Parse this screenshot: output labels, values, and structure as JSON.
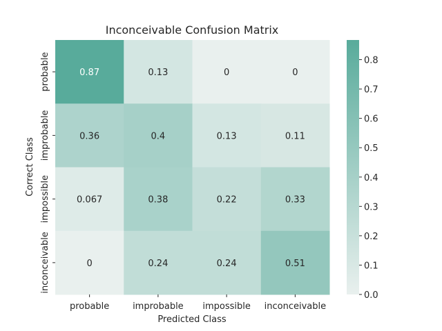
{
  "chart_data": {
    "type": "heatmap",
    "title": "Inconceivable Confusion Matrix",
    "xlabel": "Predicted Class",
    "ylabel": "Correct Class",
    "x_categories": [
      "probable",
      "improbable",
      "impossible",
      "inconceivable"
    ],
    "y_categories": [
      "probable",
      "improbable",
      "impossible",
      "inconceivable"
    ],
    "values": [
      [
        0.87,
        0.13,
        0,
        0
      ],
      [
        0.36,
        0.4,
        0.13,
        0.11
      ],
      [
        0.067,
        0.38,
        0.22,
        0.33
      ],
      [
        0,
        0.24,
        0.24,
        0.51
      ]
    ],
    "value_labels": [
      [
        "0.87",
        "0.13",
        "0",
        "0"
      ],
      [
        "0.36",
        "0.4",
        "0.13",
        "0.11"
      ],
      [
        "0.067",
        "0.38",
        "0.22",
        "0.33"
      ],
      [
        "0",
        "0.24",
        "0.24",
        "0.51"
      ]
    ],
    "colorbar": {
      "range": [
        0,
        0.867
      ],
      "ticks": [
        "0.0",
        "0.1",
        "0.2",
        "0.3",
        "0.4",
        "0.5",
        "0.6",
        "0.7",
        "0.8"
      ],
      "color_low": "#e9f0ee",
      "color_high": "#58ab9b"
    }
  }
}
